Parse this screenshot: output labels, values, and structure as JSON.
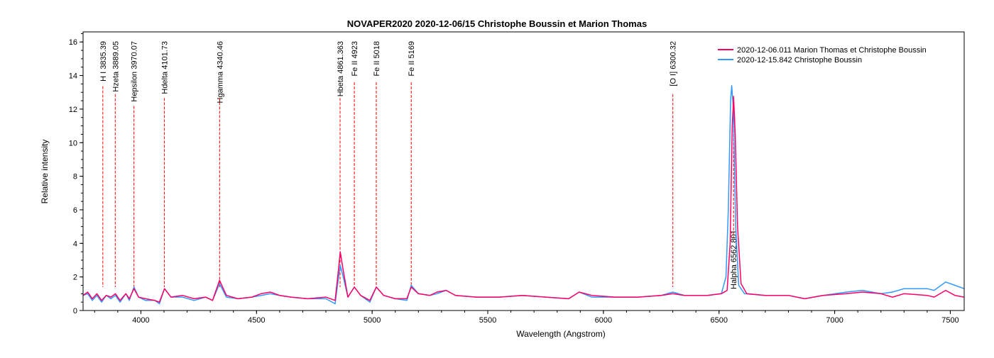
{
  "chart_data": {
    "type": "line",
    "title": "NOVAPER2020   2020-12-06/15   Christophe Boussin et Marion Thomas",
    "xlabel": "Wavelength (Angstrom)",
    "ylabel": "Relative intensity",
    "xlim": [
      3750,
      7560
    ],
    "ylim": [
      0,
      16.6
    ],
    "xticks": [
      4000,
      4500,
      5000,
      5500,
      6000,
      6500,
      7000,
      7500
    ],
    "yticks": [
      0,
      2,
      4,
      6,
      8,
      10,
      12,
      14,
      16
    ],
    "legend_position": "top-right",
    "series": [
      {
        "name": "2020-12-06.011  Marion Thomas et Christophe Boussin",
        "color": "#ff0066",
        "points": [
          [
            3750,
            0.9
          ],
          [
            3770,
            1.1
          ],
          [
            3790,
            0.7
          ],
          [
            3810,
            1.0
          ],
          [
            3830,
            0.6
          ],
          [
            3850,
            0.9
          ],
          [
            3870,
            0.8
          ],
          [
            3890,
            1.0
          ],
          [
            3910,
            0.6
          ],
          [
            3935,
            1.0
          ],
          [
            3950,
            0.7
          ],
          [
            3970,
            1.3
          ],
          [
            3990,
            0.8
          ],
          [
            4020,
            0.7
          ],
          [
            4060,
            0.6
          ],
          [
            4080,
            0.5
          ],
          [
            4102,
            1.3
          ],
          [
            4130,
            0.8
          ],
          [
            4180,
            0.9
          ],
          [
            4230,
            0.7
          ],
          [
            4280,
            0.8
          ],
          [
            4310,
            0.6
          ],
          [
            4340,
            1.8
          ],
          [
            4370,
            0.9
          ],
          [
            4420,
            0.7
          ],
          [
            4480,
            0.8
          ],
          [
            4520,
            1.0
          ],
          [
            4560,
            1.1
          ],
          [
            4600,
            0.9
          ],
          [
            4650,
            0.8
          ],
          [
            4720,
            0.7
          ],
          [
            4800,
            0.8
          ],
          [
            4840,
            0.6
          ],
          [
            4855,
            2.5
          ],
          [
            4862,
            3.5
          ],
          [
            4875,
            2.4
          ],
          [
            4895,
            0.8
          ],
          [
            4923,
            1.4
          ],
          [
            4950,
            0.9
          ],
          [
            4990,
            0.6
          ],
          [
            5018,
            1.4
          ],
          [
            5050,
            0.9
          ],
          [
            5100,
            0.7
          ],
          [
            5150,
            0.7
          ],
          [
            5169,
            1.4
          ],
          [
            5200,
            1.0
          ],
          [
            5250,
            0.9
          ],
          [
            5280,
            1.1
          ],
          [
            5320,
            1.2
          ],
          [
            5360,
            0.9
          ],
          [
            5450,
            0.8
          ],
          [
            5550,
            0.8
          ],
          [
            5650,
            0.9
          ],
          [
            5750,
            0.8
          ],
          [
            5850,
            0.7
          ],
          [
            5895,
            1.1
          ],
          [
            5950,
            0.9
          ],
          [
            6050,
            0.8
          ],
          [
            6150,
            0.8
          ],
          [
            6250,
            0.9
          ],
          [
            6300,
            1.0
          ],
          [
            6350,
            0.9
          ],
          [
            6450,
            0.9
          ],
          [
            6510,
            1.0
          ],
          [
            6535,
            1.2
          ],
          [
            6548,
            4.0
          ],
          [
            6557,
            11.0
          ],
          [
            6563,
            12.7
          ],
          [
            6570,
            10.5
          ],
          [
            6580,
            5.0
          ],
          [
            6595,
            1.6
          ],
          [
            6620,
            1.0
          ],
          [
            6700,
            0.9
          ],
          [
            6800,
            0.9
          ],
          [
            6870,
            0.7
          ],
          [
            6950,
            0.9
          ],
          [
            7050,
            1.0
          ],
          [
            7120,
            1.1
          ],
          [
            7200,
            1.0
          ],
          [
            7250,
            0.8
          ],
          [
            7300,
            1.0
          ],
          [
            7400,
            0.9
          ],
          [
            7430,
            0.8
          ],
          [
            7480,
            1.2
          ],
          [
            7520,
            0.9
          ],
          [
            7560,
            0.8
          ]
        ]
      },
      {
        "name": "2020-12-15.842  Christophe Boussin",
        "color": "#3399ff",
        "points": [
          [
            3750,
            0.9
          ],
          [
            3770,
            1.0
          ],
          [
            3790,
            0.6
          ],
          [
            3810,
            0.9
          ],
          [
            3830,
            0.5
          ],
          [
            3850,
            0.9
          ],
          [
            3870,
            0.7
          ],
          [
            3890,
            0.9
          ],
          [
            3910,
            0.5
          ],
          [
            3935,
            1.0
          ],
          [
            3950,
            0.6
          ],
          [
            3970,
            1.4
          ],
          [
            3990,
            0.8
          ],
          [
            4020,
            0.6
          ],
          [
            4060,
            0.6
          ],
          [
            4080,
            0.4
          ],
          [
            4102,
            1.3
          ],
          [
            4130,
            0.8
          ],
          [
            4180,
            0.8
          ],
          [
            4230,
            0.6
          ],
          [
            4280,
            0.8
          ],
          [
            4310,
            0.6
          ],
          [
            4340,
            1.6
          ],
          [
            4370,
            0.8
          ],
          [
            4420,
            0.7
          ],
          [
            4480,
            0.8
          ],
          [
            4520,
            0.9
          ],
          [
            4560,
            1.0
          ],
          [
            4600,
            0.9
          ],
          [
            4650,
            0.8
          ],
          [
            4720,
            0.7
          ],
          [
            4800,
            0.7
          ],
          [
            4840,
            0.4
          ],
          [
            4855,
            2.0
          ],
          [
            4862,
            2.7
          ],
          [
            4875,
            2.0
          ],
          [
            4895,
            0.8
          ],
          [
            4923,
            1.4
          ],
          [
            4950,
            0.9
          ],
          [
            4990,
            0.5
          ],
          [
            5018,
            1.4
          ],
          [
            5050,
            0.9
          ],
          [
            5100,
            0.7
          ],
          [
            5150,
            0.6
          ],
          [
            5169,
            1.5
          ],
          [
            5200,
            1.0
          ],
          [
            5250,
            0.9
          ],
          [
            5280,
            1.0
          ],
          [
            5320,
            1.2
          ],
          [
            5360,
            0.9
          ],
          [
            5450,
            0.8
          ],
          [
            5550,
            0.8
          ],
          [
            5650,
            0.9
          ],
          [
            5750,
            0.8
          ],
          [
            5850,
            0.7
          ],
          [
            5895,
            1.1
          ],
          [
            5950,
            0.8
          ],
          [
            6050,
            0.8
          ],
          [
            6150,
            0.8
          ],
          [
            6250,
            0.9
          ],
          [
            6300,
            1.1
          ],
          [
            6350,
            0.9
          ],
          [
            6450,
            0.9
          ],
          [
            6510,
            1.0
          ],
          [
            6530,
            2.0
          ],
          [
            6540,
            6.0
          ],
          [
            6550,
            12.5
          ],
          [
            6555,
            13.4
          ],
          [
            6562,
            12.0
          ],
          [
            6572,
            5.0
          ],
          [
            6585,
            1.5
          ],
          [
            6610,
            1.0
          ],
          [
            6700,
            0.9
          ],
          [
            6800,
            0.9
          ],
          [
            6870,
            0.7
          ],
          [
            6950,
            0.9
          ],
          [
            7050,
            1.1
          ],
          [
            7120,
            1.2
          ],
          [
            7200,
            1.0
          ],
          [
            7250,
            1.1
          ],
          [
            7300,
            1.3
          ],
          [
            7400,
            1.3
          ],
          [
            7430,
            1.2
          ],
          [
            7480,
            1.7
          ],
          [
            7520,
            1.5
          ],
          [
            7560,
            1.3
          ]
        ]
      }
    ],
    "annotations": [
      {
        "label": "H I 3835.39",
        "x": 3835.39
      },
      {
        "label": "Hzeta 3889.05",
        "x": 3889.05
      },
      {
        "label": "Hepsilon 3970.07",
        "x": 3970.07
      },
      {
        "label": "Hdelta 4101.73",
        "x": 4101.73
      },
      {
        "label": "Hgamma 4340.46",
        "x": 4340.46
      },
      {
        "label": "Hbeta 4861.363",
        "x": 4861.363
      },
      {
        "label": "Fe II 4923",
        "x": 4923
      },
      {
        "label": "Fe II 5018",
        "x": 5018
      },
      {
        "label": "Fe II 5169",
        "x": 5169
      },
      {
        "label": "[O I] 6300.32",
        "x": 6300.32
      },
      {
        "label": "Halpha 6562.801",
        "x": 6562.801,
        "placement": "bottom"
      }
    ]
  }
}
